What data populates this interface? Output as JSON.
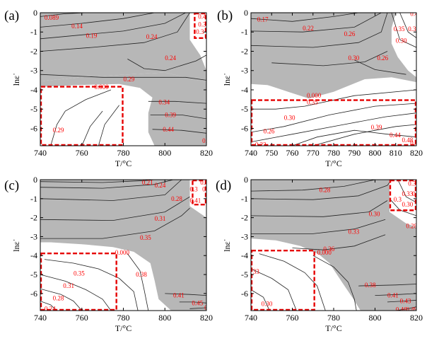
{
  "figure": {
    "type": "processing-map-panels",
    "panels": [
      {
        "id": "a",
        "letter": "(a)",
        "xlabel": "T/°C",
        "ylabel": "lnε˙",
        "x_ticks": [
          "740",
          "760",
          "780",
          "800",
          "820"
        ],
        "y_ticks": [
          "0",
          "-1",
          "-2",
          "-3",
          "-4",
          "-5",
          "-6"
        ],
        "xlim": [
          740,
          820
        ],
        "ylim": [
          -6.9,
          0
        ],
        "instability_color": "#b7b7b7",
        "highlight_color": "#e60000",
        "contour_labels": [
          {
            "text": "0.089",
            "x": 742,
            "y": -0.25
          },
          {
            "text": "0.14",
            "x": 755,
            "y": -0.7
          },
          {
            "text": "0.19",
            "x": 762,
            "y": -1.2
          },
          {
            "text": "0.24",
            "x": 791,
            "y": -1.25
          },
          {
            "text": "0.24",
            "x": 800,
            "y": -2.35
          },
          {
            "text": "0.29",
            "x": 780,
            "y": -3.45
          },
          {
            "text": "0.000",
            "x": 766,
            "y": -3.85
          },
          {
            "text": "0.34",
            "x": 797,
            "y": -4.65
          },
          {
            "text": "0.39",
            "x": 800,
            "y": -5.3
          },
          {
            "text": "0.44",
            "x": 799,
            "y": -6.05
          },
          {
            "text": "0.5",
            "x": 818,
            "y": -6.65
          },
          {
            "text": "0.29",
            "x": 746,
            "y": -6.1
          },
          {
            "text": "0.44",
            "x": 816,
            "y": -0.2
          },
          {
            "text": "0.3",
            "x": 816,
            "y": -0.6
          },
          {
            "text": "0.3",
            "x": 815,
            "y": -1.0
          }
        ],
        "highlight_boxes": [
          {
            "x": [
              740,
              780
            ],
            "y": [
              -6.9,
              -3.8
            ]
          },
          {
            "x": [
              814,
              820
            ],
            "y": [
              -1.35,
              0
            ]
          }
        ]
      },
      {
        "id": "b",
        "letter": "(b)",
        "xlabel": "T/°C",
        "ylabel": "lnε˙",
        "x_ticks": [
          "740",
          "750",
          "760",
          "770",
          "780",
          "790",
          "800",
          "810",
          "820"
        ],
        "y_ticks": [
          "0",
          "-1",
          "-2",
          "-3",
          "-4",
          "-5",
          "-6"
        ],
        "xlim": [
          740,
          820
        ],
        "ylim": [
          -6.9,
          0
        ],
        "instability_color": "#b7b7b7",
        "highlight_color": "#e60000",
        "contour_labels": [
          {
            "text": "0.17",
            "x": 743,
            "y": -0.35
          },
          {
            "text": "0.22",
            "x": 765,
            "y": -0.8
          },
          {
            "text": "0.26",
            "x": 785,
            "y": -1.1
          },
          {
            "text": "0.30",
            "x": 787,
            "y": -2.35
          },
          {
            "text": "0.26",
            "x": 801,
            "y": -2.35
          },
          {
            "text": "0.44",
            "x": 811,
            "y": 0.1
          },
          {
            "text": "0.48",
            "x": 817,
            "y": -0.05
          },
          {
            "text": "0.35",
            "x": 809,
            "y": -0.85
          },
          {
            "text": "0.3",
            "x": 816,
            "y": -0.85
          },
          {
            "text": "0.30",
            "x": 810,
            "y": -1.45
          },
          {
            "text": "0.000",
            "x": 767,
            "y": -4.3
          },
          {
            "text": "0.35",
            "x": 767,
            "y": -4.65
          },
          {
            "text": "0.30",
            "x": 756,
            "y": -5.45
          },
          {
            "text": "0.39",
            "x": 798,
            "y": -5.95
          },
          {
            "text": "0.26",
            "x": 746,
            "y": -6.15
          },
          {
            "text": "0.44",
            "x": 807,
            "y": -6.35
          },
          {
            "text": "0.48",
            "x": 813,
            "y": -6.6
          },
          {
            "text": "0.5",
            "x": 817,
            "y": -6.75
          },
          {
            "text": "0.22",
            "x": 742,
            "y": -6.85
          }
        ],
        "highlight_boxes": [
          {
            "x": [
              740,
              820
            ],
            "y": [
              -6.9,
              -4.5
            ]
          }
        ]
      },
      {
        "id": "c",
        "letter": "(c)",
        "xlabel": "T/°C",
        "ylabel": "lnε˙",
        "x_ticks": [
          "740",
          "760",
          "780",
          "800",
          "820"
        ],
        "y_ticks": [
          "0",
          "-1",
          "-2",
          "-3",
          "-4",
          "-5",
          "-6"
        ],
        "xlim": [
          740,
          820
        ],
        "ylim": [
          -6.9,
          0
        ],
        "instability_color": "#b7b7b7",
        "highlight_color": "#e60000",
        "contour_labels": [
          {
            "text": "0.21",
            "x": 789,
            "y": -0.15
          },
          {
            "text": "0.24",
            "x": 795,
            "y": -0.3
          },
          {
            "text": "0.28",
            "x": 803,
            "y": -1.0
          },
          {
            "text": "0.31",
            "x": 795,
            "y": -2.05
          },
          {
            "text": "0.35",
            "x": 788,
            "y": -3.05
          },
          {
            "text": "0.000",
            "x": 776,
            "y": -3.85
          },
          {
            "text": "0.38",
            "x": 786,
            "y": -5.0
          },
          {
            "text": "0.35",
            "x": 756,
            "y": -4.95
          },
          {
            "text": "0.31",
            "x": 751,
            "y": -5.6
          },
          {
            "text": "0.28",
            "x": 746,
            "y": -6.25
          },
          {
            "text": "0.24",
            "x": 742,
            "y": -6.8
          },
          {
            "text": "0.41",
            "x": 804,
            "y": -6.1
          },
          {
            "text": "0.45",
            "x": 813,
            "y": -6.5
          },
          {
            "text": "0.48",
            "x": 819,
            "y": -6.75
          },
          {
            "text": "0.4",
            "x": 817,
            "y": -0.15
          },
          {
            "text": "0.3",
            "x": 812,
            "y": -0.5
          },
          {
            "text": "0.3",
            "x": 818,
            "y": -0.5
          },
          {
            "text": "0.41",
            "x": 812,
            "y": -1.1
          }
        ],
        "highlight_boxes": [
          {
            "x": [
              740,
              777
            ],
            "y": [
              -6.9,
              -3.85
            ]
          },
          {
            "x": [
              813,
              820
            ],
            "y": [
              -1.35,
              0
            ]
          }
        ]
      },
      {
        "id": "d",
        "letter": "(d)",
        "xlabel": "T/°C",
        "ylabel": "lnε˙",
        "x_ticks": [
          "740",
          "760",
          "780",
          "800",
          "820"
        ],
        "y_ticks": [
          "0",
          "-1",
          "-2",
          "-3",
          "-4",
          "-5",
          "-6"
        ],
        "xlim": [
          740,
          820
        ],
        "ylim": [
          -6.9,
          0
        ],
        "instability_color": "#b7b7b7",
        "highlight_color": "#e60000",
        "contour_labels": [
          {
            "text": "0.28",
            "x": 773,
            "y": -0.55
          },
          {
            "text": "0.30",
            "x": 797,
            "y": -1.8
          },
          {
            "text": "0.33",
            "x": 787,
            "y": -2.75
          },
          {
            "text": "0.36",
            "x": 775,
            "y": -3.65
          },
          {
            "text": "0.000",
            "x": 772,
            "y": -3.85
          },
          {
            "text": "0.38",
            "x": 795,
            "y": -5.55
          },
          {
            "text": "0.41",
            "x": 806,
            "y": -6.1
          },
          {
            "text": "0.43",
            "x": 812,
            "y": -6.4
          },
          {
            "text": "0.46",
            "x": 810,
            "y": -6.85
          },
          {
            "text": "0.49",
            "x": 815,
            "y": -6.85
          },
          {
            "text": "0.28",
            "x": 815,
            "y": -2.45
          },
          {
            "text": "0.38",
            "x": 816,
            "y": -0.2
          },
          {
            "text": "0.33",
            "x": 813,
            "y": -0.75
          },
          {
            "text": "0.3",
            "x": 818,
            "y": -0.75
          },
          {
            "text": "0.3",
            "x": 809,
            "y": -1.05
          },
          {
            "text": "0.30",
            "x": 813,
            "y": -1.3
          },
          {
            "text": "33",
            "x": 741,
            "y": -4.85
          },
          {
            "text": "0.30",
            "x": 745,
            "y": -6.55
          }
        ],
        "highlight_boxes": [
          {
            "x": [
              740,
              771
            ],
            "y": [
              -6.9,
              -3.7
            ]
          },
          {
            "x": [
              807,
              820
            ],
            "y": [
              -1.65,
              0
            ]
          }
        ]
      }
    ]
  }
}
